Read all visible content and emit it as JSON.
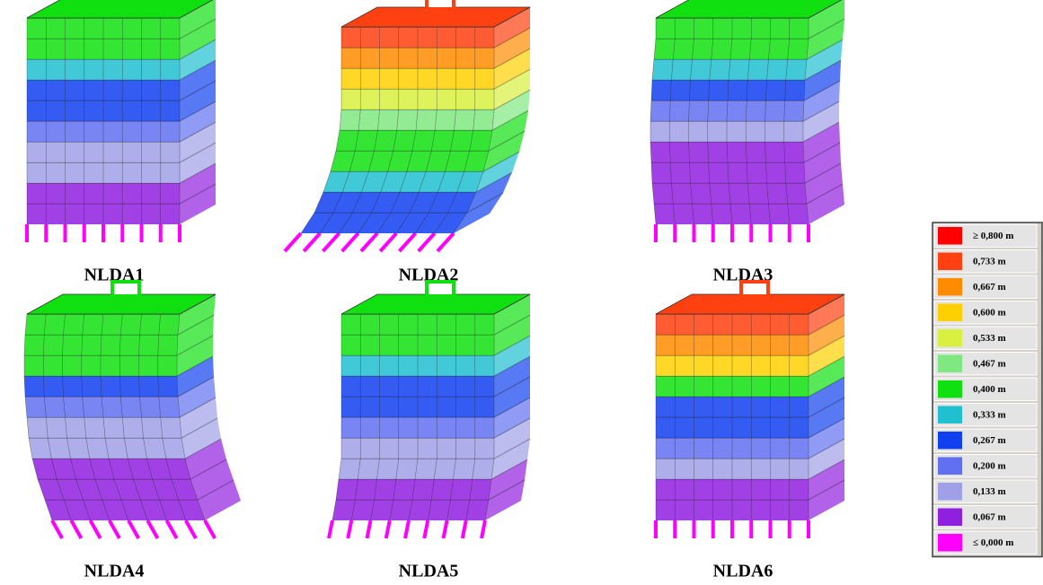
{
  "panels": [
    {
      "label": "NLDA1"
    },
    {
      "label": "NLDA2"
    },
    {
      "label": "NLDA3"
    },
    {
      "label": "NLDA4"
    },
    {
      "label": "NLDA5"
    },
    {
      "label": "NLDA6"
    }
  ],
  "legend": {
    "items": [
      {
        "label": "≥ 0,800 m",
        "color": "#ff0000"
      },
      {
        "label": "0,733 m",
        "color": "#ff4010"
      },
      {
        "label": "0,667 m",
        "color": "#ff8c00"
      },
      {
        "label": "0,600 m",
        "color": "#ffd000"
      },
      {
        "label": "0,533 m",
        "color": "#d8f040"
      },
      {
        "label": "0,467 m",
        "color": "#80e880"
      },
      {
        "label": "0,400 m",
        "color": "#10e010"
      },
      {
        "label": "0,333 m",
        "color": "#20c0d0"
      },
      {
        "label": "0,267 m",
        "color": "#1040f0"
      },
      {
        "label": "0,200 m",
        "color": "#6070f0"
      },
      {
        "label": "0,133 m",
        "color": "#a0a0e8"
      },
      {
        "label": "0,067 m",
        "color": "#9020e0"
      },
      {
        "label": "≤ 0,000 m",
        "color": "#ff00ff"
      }
    ]
  }
}
